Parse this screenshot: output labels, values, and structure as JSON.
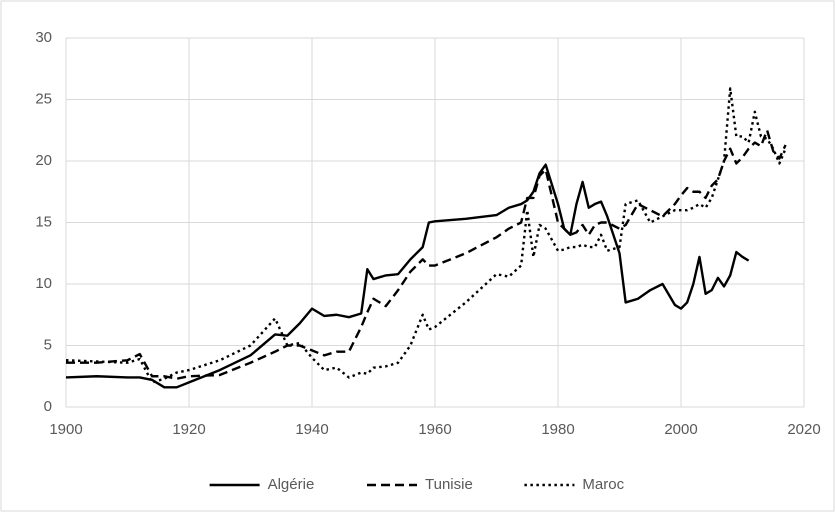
{
  "chart_data": {
    "type": "line",
    "x": [
      1900,
      1905,
      1910,
      1912,
      1914,
      1916,
      1918,
      1920,
      1925,
      1930,
      1934,
      1936,
      1938,
      1940,
      1942,
      1944,
      1946,
      1948,
      1949,
      1950,
      1952,
      1954,
      1956,
      1958,
      1959,
      1960,
      1965,
      1970,
      1972,
      1974,
      1975,
      1976,
      1977,
      1978,
      1980,
      1981,
      1982,
      1983,
      1984,
      1985,
      1986,
      1987,
      1988,
      1990,
      1991,
      1993,
      1995,
      1997,
      1999,
      2000,
      2001,
      2002,
      2003,
      2004,
      2005,
      2006,
      2007,
      2008,
      2009,
      2010,
      2011,
      2012,
      2013,
      2014,
      2015,
      2016,
      2017
    ],
    "series": [
      {
        "name": "Algérie",
        "color": "#000000",
        "style": "solid",
        "values": [
          2.4,
          2.5,
          2.4,
          2.4,
          2.2,
          1.6,
          1.6,
          2.0,
          3.0,
          4.2,
          5.9,
          5.8,
          6.8,
          8.0,
          7.4,
          7.5,
          7.3,
          7.6,
          11.2,
          10.4,
          10.7,
          10.8,
          12.0,
          13.0,
          15.0,
          15.1,
          15.3,
          15.6,
          16.2,
          16.5,
          16.8,
          17.5,
          19.0,
          19.7,
          16.5,
          14.5,
          14.0,
          16.5,
          18.3,
          16.2,
          16.5,
          16.7,
          15.5,
          12.5,
          8.5,
          8.8,
          9.5,
          10.0,
          8.3,
          8.0,
          8.5,
          10.0,
          12.2,
          9.2,
          9.5,
          10.5,
          9.8,
          10.7,
          12.6,
          12.2,
          11.9,
          null,
          null,
          null,
          null,
          null,
          null
        ]
      },
      {
        "name": "Tunisie",
        "color": "#000000",
        "style": "dashed",
        "values": [
          3.6,
          3.6,
          3.8,
          4.3,
          2.5,
          2.5,
          2.3,
          2.5,
          2.6,
          3.6,
          4.5,
          5.0,
          5.0,
          4.6,
          4.2,
          4.5,
          4.5,
          6.5,
          7.7,
          8.8,
          8.2,
          9.5,
          11.0,
          12.0,
          11.5,
          11.5,
          12.5,
          13.8,
          14.5,
          15.0,
          17.0,
          17.0,
          18.8,
          19.3,
          15.0,
          14.5,
          14.0,
          14.2,
          14.8,
          14.0,
          14.8,
          15.0,
          15.0,
          14.5,
          14.8,
          16.5,
          16.0,
          15.5,
          16.5,
          17.2,
          17.8,
          17.5,
          17.5,
          17.0,
          18.0,
          18.5,
          20.0,
          21.0,
          19.8,
          20.3,
          21.0,
          21.5,
          21.2,
          22.5,
          20.8,
          20.2,
          21.3
        ]
      },
      {
        "name": "Maroc",
        "color": "#000000",
        "style": "dotted",
        "values": [
          3.8,
          3.7,
          3.6,
          3.9,
          2.0,
          2.3,
          2.8,
          3.0,
          3.8,
          5.0,
          7.2,
          5.0,
          5.2,
          4.0,
          3.0,
          3.2,
          2.4,
          2.8,
          2.7,
          3.2,
          3.3,
          3.6,
          5.0,
          7.5,
          6.3,
          6.5,
          8.5,
          10.8,
          10.6,
          11.5,
          16.0,
          12.2,
          14.8,
          14.5,
          12.7,
          12.8,
          13.0,
          13.0,
          13.2,
          13.0,
          13.0,
          14.0,
          12.7,
          13.0,
          16.5,
          16.8,
          15.0,
          15.5,
          16.0,
          16.0,
          16.0,
          16.2,
          16.5,
          16.2,
          17.0,
          18.5,
          20.0,
          25.9,
          22.0,
          22.0,
          21.5,
          24.0,
          22.0,
          21.8,
          21.0,
          19.8,
          21.0
        ]
      }
    ],
    "xlim": [
      1900,
      2020
    ],
    "xticks": [
      1900,
      1920,
      1940,
      1960,
      1980,
      2000,
      2020
    ],
    "ylim": [
      0,
      30
    ],
    "yticks": [
      0,
      5,
      10,
      15,
      20,
      25,
      30
    ],
    "grid": true,
    "legend": "bottom"
  }
}
